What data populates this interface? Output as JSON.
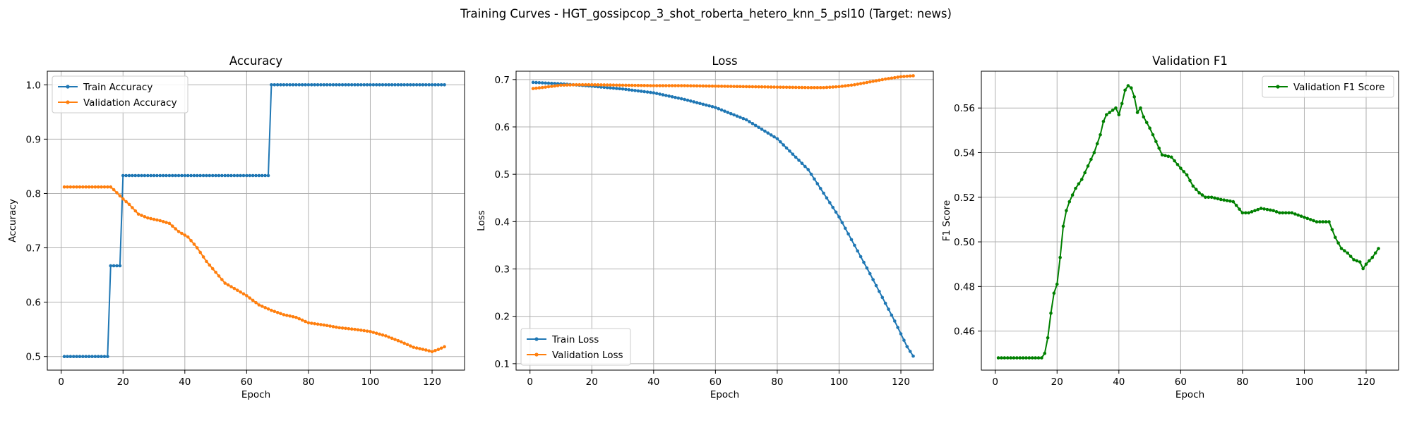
{
  "figure": {
    "suptitle": "Training Curves - HGT_gossipcop_3_shot_roberta_hetero_knn_5_psl10 (Target: news)"
  },
  "colors": {
    "train": "#1f77b4",
    "validation": "#ff7f0e",
    "f1": "#008000",
    "grid": "#b0b0b0"
  },
  "chart_data": [
    {
      "type": "line",
      "title": "Accuracy",
      "xlabel": "Epoch",
      "ylabel": "Accuracy",
      "xlim": [
        -4.5,
        130.5
      ],
      "ylim": [
        0.475,
        1.025
      ],
      "xticks": [
        0,
        20,
        40,
        60,
        80,
        100,
        120
      ],
      "yticks": [
        0.5,
        0.6,
        0.7,
        0.8,
        0.9,
        1.0
      ],
      "ytick_labels": [
        "0.5",
        "0.6",
        "0.7",
        "0.8",
        "0.9",
        "1.0"
      ],
      "grid": true,
      "legend": "upper-left",
      "marker": "dot",
      "series": [
        {
          "name": "Train Accuracy",
          "color": "#1f77b4",
          "segments": [
            {
              "from": 1,
              "to": 15,
              "value": 0.5
            },
            {
              "from": 16,
              "to": 19,
              "value": 0.667
            },
            {
              "from": 20,
              "to": 67,
              "value": 0.833
            },
            {
              "from": 68,
              "to": 124,
              "value": 1.0
            }
          ]
        },
        {
          "name": "Validation Accuracy",
          "color": "#ff7f0e",
          "keypoints": [
            [
              1,
              0.812
            ],
            [
              16,
              0.812
            ],
            [
              17,
              0.807
            ],
            [
              20,
              0.79
            ],
            [
              22,
              0.78
            ],
            [
              25,
              0.762
            ],
            [
              28,
              0.755
            ],
            [
              32,
              0.75
            ],
            [
              35,
              0.745
            ],
            [
              38,
              0.73
            ],
            [
              41,
              0.72
            ],
            [
              44,
              0.7
            ],
            [
              47,
              0.675
            ],
            [
              50,
              0.655
            ],
            [
              53,
              0.635
            ],
            [
              57,
              0.622
            ],
            [
              60,
              0.612
            ],
            [
              64,
              0.595
            ],
            [
              68,
              0.585
            ],
            [
              72,
              0.577
            ],
            [
              76,
              0.572
            ],
            [
              80,
              0.562
            ],
            [
              85,
              0.558
            ],
            [
              90,
              0.553
            ],
            [
              95,
              0.55
            ],
            [
              100,
              0.546
            ],
            [
              105,
              0.538
            ],
            [
              110,
              0.527
            ],
            [
              114,
              0.517
            ],
            [
              118,
              0.512
            ],
            [
              120,
              0.509
            ],
            [
              122,
              0.513
            ],
            [
              124,
              0.518
            ]
          ]
        }
      ]
    },
    {
      "type": "line",
      "title": "Loss",
      "xlabel": "Epoch",
      "ylabel": "Loss",
      "xlim": [
        -4.5,
        130.5
      ],
      "ylim": [
        0.0864,
        0.7176
      ],
      "xticks": [
        0,
        20,
        40,
        60,
        80,
        100,
        120
      ],
      "yticks": [
        0.1,
        0.2,
        0.3,
        0.4,
        0.5,
        0.6,
        0.7
      ],
      "ytick_labels": [
        "0.1",
        "0.2",
        "0.3",
        "0.4",
        "0.5",
        "0.6",
        "0.7"
      ],
      "grid": true,
      "legend": "lower-left",
      "marker": "dot",
      "series": [
        {
          "name": "Train Loss",
          "color": "#1f77b4",
          "keypoints": [
            [
              1,
              0.694
            ],
            [
              10,
              0.691
            ],
            [
              20,
              0.686
            ],
            [
              30,
              0.68
            ],
            [
              40,
              0.672
            ],
            [
              50,
              0.658
            ],
            [
              60,
              0.641
            ],
            [
              70,
              0.615
            ],
            [
              80,
              0.575
            ],
            [
              90,
              0.51
            ],
            [
              100,
              0.41
            ],
            [
              110,
              0.29
            ],
            [
              118,
              0.19
            ],
            [
              122,
              0.136
            ],
            [
              124,
              0.116
            ]
          ]
        },
        {
          "name": "Validation Loss",
          "color": "#ff7f0e",
          "keypoints": [
            [
              1,
              0.681
            ],
            [
              5,
              0.684
            ],
            [
              10,
              0.688
            ],
            [
              15,
              0.689
            ],
            [
              20,
              0.689
            ],
            [
              30,
              0.688
            ],
            [
              40,
              0.687
            ],
            [
              50,
              0.687
            ],
            [
              60,
              0.686
            ],
            [
              70,
              0.685
            ],
            [
              80,
              0.684
            ],
            [
              90,
              0.683
            ],
            [
              95,
              0.683
            ],
            [
              100,
              0.685
            ],
            [
              105,
              0.689
            ],
            [
              110,
              0.695
            ],
            [
              115,
              0.701
            ],
            [
              120,
              0.706
            ],
            [
              124,
              0.708
            ]
          ]
        }
      ]
    },
    {
      "type": "line",
      "title": "Validation F1",
      "xlabel": "Epoch",
      "ylabel": "F1 Score",
      "xlim": [
        -4.5,
        130.5
      ],
      "ylim": [
        0.4425,
        0.5765
      ],
      "xticks": [
        0,
        20,
        40,
        60,
        80,
        100,
        120
      ],
      "yticks": [
        0.46,
        0.48,
        0.5,
        0.52,
        0.54,
        0.56
      ],
      "ytick_labels": [
        "0.46",
        "0.48",
        "0.50",
        "0.52",
        "0.54",
        "0.56"
      ],
      "grid": true,
      "legend": "upper-right",
      "marker": "dot",
      "series": [
        {
          "name": "Validation F1 Score",
          "color": "#008000",
          "keypoints": [
            [
              1,
              0.448
            ],
            [
              15,
              0.448
            ],
            [
              16,
              0.45
            ],
            [
              17,
              0.457
            ],
            [
              18,
              0.468
            ],
            [
              19,
              0.477
            ],
            [
              20,
              0.481
            ],
            [
              21,
              0.493
            ],
            [
              22,
              0.507
            ],
            [
              23,
              0.514
            ],
            [
              24,
              0.518
            ],
            [
              26,
              0.524
            ],
            [
              28,
              0.528
            ],
            [
              30,
              0.534
            ],
            [
              32,
              0.54
            ],
            [
              34,
              0.548
            ],
            [
              35,
              0.554
            ],
            [
              36,
              0.557
            ],
            [
              38,
              0.559
            ],
            [
              39,
              0.56
            ],
            [
              40,
              0.557
            ],
            [
              41,
              0.562
            ],
            [
              42,
              0.568
            ],
            [
              43,
              0.57
            ],
            [
              44,
              0.569
            ],
            [
              45,
              0.565
            ],
            [
              46,
              0.558
            ],
            [
              47,
              0.56
            ],
            [
              48,
              0.556
            ],
            [
              50,
              0.551
            ],
            [
              52,
              0.545
            ],
            [
              54,
              0.539
            ],
            [
              57,
              0.538
            ],
            [
              60,
              0.533
            ],
            [
              62,
              0.53
            ],
            [
              64,
              0.525
            ],
            [
              66,
              0.522
            ],
            [
              68,
              0.52
            ],
            [
              70,
              0.52
            ],
            [
              73,
              0.519
            ],
            [
              77,
              0.518
            ],
            [
              80,
              0.513
            ],
            [
              82,
              0.513
            ],
            [
              86,
              0.515
            ],
            [
              90,
              0.514
            ],
            [
              92,
              0.513
            ],
            [
              96,
              0.513
            ],
            [
              100,
              0.511
            ],
            [
              104,
              0.509
            ],
            [
              108,
              0.509
            ],
            [
              110,
              0.502
            ],
            [
              112,
              0.497
            ],
            [
              114,
              0.495
            ],
            [
              116,
              0.492
            ],
            [
              118,
              0.491
            ],
            [
              119,
              0.488
            ],
            [
              120,
              0.49
            ],
            [
              122,
              0.493
            ],
            [
              124,
              0.497
            ]
          ]
        }
      ]
    }
  ]
}
